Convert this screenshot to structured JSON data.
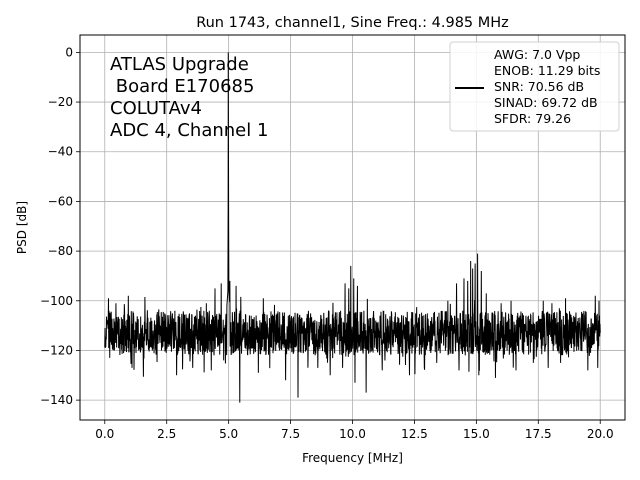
{
  "chart_data": {
    "type": "line",
    "title": "Run 1743, channel1, Sine Freq.: 4.985 MHz",
    "xlabel": "Frequency [MHz]",
    "ylabel": "PSD [dB]",
    "xlim": [
      -1.0,
      21.0
    ],
    "ylim": [
      -148,
      7
    ],
    "xticks": [
      0.0,
      2.5,
      5.0,
      7.5,
      10.0,
      12.5,
      15.0,
      17.5,
      20.0
    ],
    "xtick_labels": [
      "0.0",
      "2.5",
      "5.0",
      "7.5",
      "10.0",
      "12.5",
      "15.0",
      "17.5",
      "20.0"
    ],
    "yticks": [
      0,
      -20,
      -40,
      -60,
      -80,
      -100,
      -120,
      -140
    ],
    "ytick_labels": [
      "0",
      "−20",
      "−40",
      "−60",
      "−80",
      "−100",
      "−120",
      "−140"
    ],
    "grid": true,
    "line_color": "#000000",
    "legend_location": "top-right",
    "legend_lines": [
      "AWG: 7.0 Vpp",
      "ENOB: 11.29 bits",
      "SNR: 70.56 dB",
      "SINAD: 69.72 dB",
      "SFDR: 79.26"
    ],
    "annotation_lines": [
      "ATLAS Upgrade",
      " Board E170685",
      "COLUTAv4",
      "ADC 4, Channel 1"
    ],
    "noise_floor_db": -113,
    "fundamental": {
      "x": 4.985,
      "y": 0
    },
    "spurs": [
      {
        "x": 0.15,
        "y": -99
      },
      {
        "x": 0.45,
        "y": -101
      },
      {
        "x": 0.95,
        "y": -98
      },
      {
        "x": 4.1,
        "y": -101
      },
      {
        "x": 4.45,
        "y": -95
      },
      {
        "x": 4.7,
        "y": -93
      },
      {
        "x": 5.05,
        "y": -92
      },
      {
        "x": 5.3,
        "y": -94
      },
      {
        "x": 6.4,
        "y": -99
      },
      {
        "x": 9.7,
        "y": -93
      },
      {
        "x": 9.85,
        "y": -95
      },
      {
        "x": 9.93,
        "y": -86
      },
      {
        "x": 10.05,
        "y": -91
      },
      {
        "x": 10.2,
        "y": -94
      },
      {
        "x": 13.85,
        "y": -100
      },
      {
        "x": 14.2,
        "y": -93
      },
      {
        "x": 14.5,
        "y": -91
      },
      {
        "x": 14.65,
        "y": -92
      },
      {
        "x": 14.77,
        "y": -84
      },
      {
        "x": 14.85,
        "y": -87
      },
      {
        "x": 14.95,
        "y": -85
      },
      {
        "x": 15.05,
        "y": -81
      },
      {
        "x": 15.2,
        "y": -88
      },
      {
        "x": 15.4,
        "y": -97
      },
      {
        "x": 16.0,
        "y": -101
      },
      {
        "x": 16.4,
        "y": -100
      },
      {
        "x": 17.7,
        "y": -100
      },
      {
        "x": 18.05,
        "y": -101
      },
      {
        "x": 18.35,
        "y": -103
      },
      {
        "x": 18.6,
        "y": -99
      },
      {
        "x": 19.8,
        "y": -98
      },
      {
        "x": 19.95,
        "y": -100
      }
    ],
    "dips": [
      {
        "x": 0.2,
        "y": -123
      },
      {
        "x": 1.1,
        "y": -127
      },
      {
        "x": 2.9,
        "y": -130
      },
      {
        "x": 3.55,
        "y": -127
      },
      {
        "x": 4.3,
        "y": -128
      },
      {
        "x": 4.8,
        "y": -124
      },
      {
        "x": 5.45,
        "y": -141
      },
      {
        "x": 6.2,
        "y": -129
      },
      {
        "x": 7.3,
        "y": -132
      },
      {
        "x": 7.8,
        "y": -139
      },
      {
        "x": 8.6,
        "y": -127
      },
      {
        "x": 9.1,
        "y": -130
      },
      {
        "x": 9.6,
        "y": -127
      },
      {
        "x": 10.1,
        "y": -133
      },
      {
        "x": 10.55,
        "y": -137
      },
      {
        "x": 11.2,
        "y": -128
      },
      {
        "x": 12.3,
        "y": -130
      },
      {
        "x": 12.9,
        "y": -127
      },
      {
        "x": 13.4,
        "y": -125
      },
      {
        "x": 14.3,
        "y": -128
      },
      {
        "x": 15.1,
        "y": -130
      },
      {
        "x": 16.6,
        "y": -128
      },
      {
        "x": 17.3,
        "y": -125
      },
      {
        "x": 17.9,
        "y": -127
      },
      {
        "x": 18.4,
        "y": -125
      },
      {
        "x": 19.5,
        "y": -128
      },
      {
        "x": 19.9,
        "y": -127
      }
    ]
  }
}
